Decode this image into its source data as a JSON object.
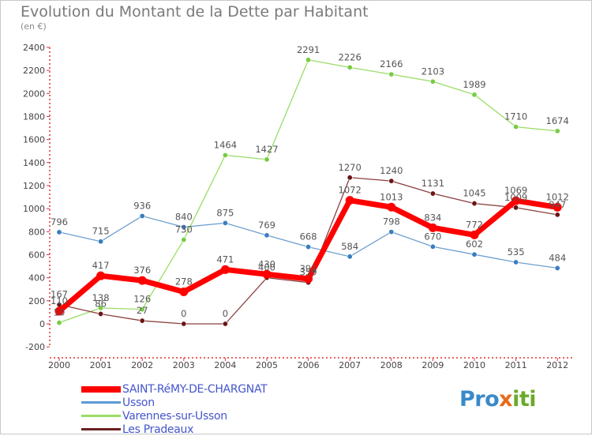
{
  "header": {
    "title": "Evolution du Montant de la Dette par Habitant",
    "subtitle": "(en €)"
  },
  "legend": {
    "items": [
      {
        "label": "SAINT-RéMY-DE-CHARGNAT",
        "color": "#ff0000",
        "thick": true
      },
      {
        "label": "Usson",
        "color": "#5b9bd5"
      },
      {
        "label": "Varennes-sur-Usson",
        "color": "#99dd66"
      },
      {
        "label": "Les Pradeaux",
        "color": "#6b2020"
      }
    ]
  },
  "logo": {
    "part1": "Pro",
    "part2": "x",
    "part3": "iti"
  },
  "chart_data": {
    "type": "line",
    "title": "Evolution du Montant de la Dette par Habitant",
    "ylabel": "(en €)",
    "xlabel": "",
    "ylim": [
      -200,
      2400
    ],
    "yticks": [
      -200,
      0,
      200,
      400,
      600,
      800,
      1000,
      1200,
      1400,
      1600,
      1800,
      2000,
      2200,
      2400
    ],
    "grid": false,
    "x": [
      "2000",
      "2001",
      "2002",
      "2003",
      "2004",
      "2005",
      "2006",
      "2007",
      "2008",
      "2009",
      "2010",
      "2011",
      "2012"
    ],
    "series": [
      {
        "name": "Varennes-sur-Usson",
        "color": "#99dd66",
        "point": "#77cc44",
        "width": 1.3,
        "values": [
          10,
          138,
          126,
          730,
          1464,
          1427,
          2291,
          2226,
          2166,
          2103,
          1989,
          1710,
          1674
        ],
        "labels": [
          "10",
          "138",
          "126",
          "730",
          "1464",
          "1427",
          "2291",
          "2226",
          "2166",
          "2103",
          "1989",
          "1710",
          "1674"
        ]
      },
      {
        "name": "Usson",
        "color": "#6fa0d0",
        "point": "#3a7dc0",
        "width": 1.3,
        "values": [
          796,
          715,
          936,
          840,
          875,
          769,
          668,
          584,
          798,
          670,
          602,
          535,
          484
        ],
        "labels": [
          "796",
          "715",
          "936",
          "840",
          "875",
          "769",
          "668",
          "584",
          "798",
          "670",
          "602",
          "535",
          "484"
        ]
      },
      {
        "name": "Les Pradeaux",
        "color": "#8b4040",
        "point": "#6b1515",
        "width": 1.3,
        "values": [
          167,
          86,
          27,
          0,
          0,
          400,
          359,
          1270,
          1240,
          1131,
          1045,
          1009,
          947
        ],
        "labels": [
          "167",
          "86",
          "27",
          "0",
          "0",
          "400",
          "359",
          "1270",
          "1240",
          "1131",
          "1045",
          "1009",
          "947"
        ]
      },
      {
        "name": "SAINT-RéMY-DE-CHARGNAT",
        "color": "#ff0000",
        "point": "#ff0000",
        "width": 7,
        "values": [
          110,
          417,
          376,
          278,
          471,
          430,
          391,
          1072,
          1013,
          834,
          772,
          1069,
          1012
        ],
        "labels": [
          "110",
          "417",
          "376",
          "278",
          "471",
          "430",
          "391",
          "1072",
          "1013",
          "834",
          "772",
          "1069",
          "1012"
        ]
      }
    ]
  }
}
